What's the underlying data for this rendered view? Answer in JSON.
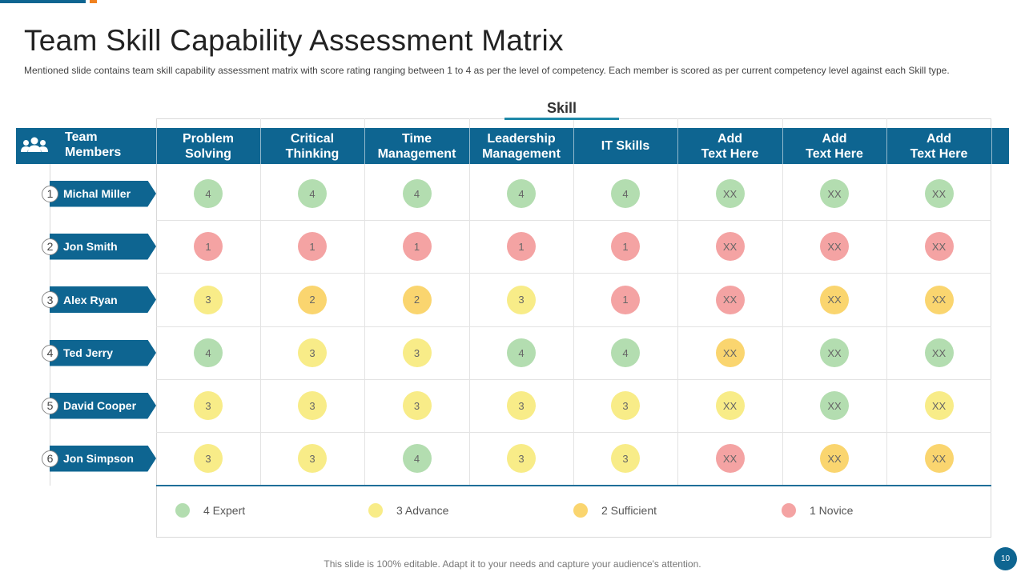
{
  "title": "Team Skill Capability Assessment Matrix",
  "subtitle": "Mentioned slide contains team skill capability assessment matrix with score rating ranging between 1 to 4 as per the level of competency. Each member is scored as per current competency level against each Skill type.",
  "skill_header": "Skill",
  "team_header": "Team\nMembers",
  "columns": [
    "Problem\nSolving",
    "Critical\nThinking",
    "Time\nManagement",
    "Leadership\nManagement",
    "IT Skills",
    "Add\nText Here",
    "Add\nText Here",
    "Add\nText Here"
  ],
  "members": [
    {
      "num": "1",
      "name": "Michal Miller",
      "scores": [
        "4",
        "4",
        "4",
        "4",
        "4",
        "XX",
        "XX",
        "XX"
      ],
      "levels": [
        4,
        4,
        4,
        4,
        4,
        4,
        4,
        4
      ]
    },
    {
      "num": "2",
      "name": "Jon Smith",
      "scores": [
        "1",
        "1",
        "1",
        "1",
        "1",
        "XX",
        "XX",
        "XX"
      ],
      "levels": [
        1,
        1,
        1,
        1,
        1,
        1,
        1,
        1
      ]
    },
    {
      "num": "3",
      "name": "Alex Ryan",
      "scores": [
        "3",
        "2",
        "2",
        "3",
        "1",
        "XX",
        "XX",
        "XX"
      ],
      "levels": [
        3,
        2,
        2,
        3,
        1,
        1,
        2,
        2
      ]
    },
    {
      "num": "4",
      "name": "Ted Jerry",
      "scores": [
        "4",
        "3",
        "3",
        "4",
        "4",
        "XX",
        "XX",
        "XX"
      ],
      "levels": [
        4,
        3,
        3,
        4,
        4,
        2,
        4,
        4
      ]
    },
    {
      "num": "5",
      "name": "David Cooper",
      "scores": [
        "3",
        "3",
        "3",
        "3",
        "3",
        "XX",
        "XX",
        "XX"
      ],
      "levels": [
        3,
        3,
        3,
        3,
        3,
        3,
        4,
        3
      ]
    },
    {
      "num": "6",
      "name": "Jon Simpson",
      "scores": [
        "3",
        "3",
        "4",
        "3",
        "3",
        "XX",
        "XX",
        "XX"
      ],
      "levels": [
        3,
        3,
        4,
        3,
        3,
        1,
        2,
        2
      ]
    }
  ],
  "legend": [
    {
      "level": 4,
      "label": "4 Expert"
    },
    {
      "level": 3,
      "label": "3 Advance"
    },
    {
      "level": 2,
      "label": "2 Sufficient"
    },
    {
      "level": 1,
      "label": "1 Novice"
    }
  ],
  "level_colors": {
    "4": "#b3ddb0",
    "3": "#f8ec88",
    "2": "#fad56f",
    "1": "#f4a3a3"
  },
  "colors": {
    "primary": "#0e6591",
    "accent_orange": "#f0811f",
    "skill_underline": "#1e88a8"
  },
  "team_icon": "team-icon",
  "footer": "This slide is 100% editable. Adapt it to your needs and capture your audience's attention.",
  "page_number": "10"
}
